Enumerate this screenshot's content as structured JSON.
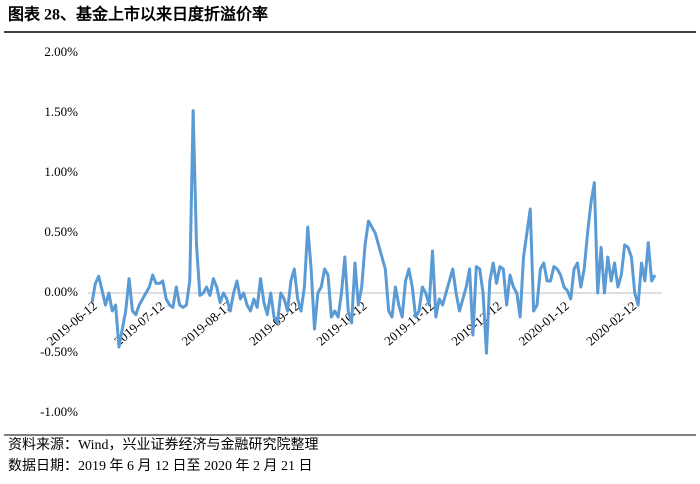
{
  "chart_data": {
    "type": "line",
    "title": "图表 28、基金上市以来日度折溢价率",
    "categories": [
      "2019-06-12",
      null,
      null,
      null,
      null,
      null,
      null,
      null,
      null,
      null,
      null,
      null,
      null,
      null,
      null,
      null,
      null,
      null,
      null,
      null,
      "2019-07-12",
      null,
      null,
      null,
      null,
      null,
      null,
      null,
      null,
      null,
      null,
      null,
      null,
      null,
      null,
      null,
      null,
      null,
      null,
      null,
      "2019-08-12",
      null,
      null,
      null,
      null,
      null,
      null,
      null,
      null,
      null,
      null,
      null,
      null,
      null,
      null,
      null,
      null,
      null,
      null,
      null,
      "2019-09-12",
      null,
      null,
      null,
      null,
      null,
      null,
      null,
      null,
      null,
      null,
      null,
      null,
      null,
      null,
      null,
      null,
      null,
      null,
      null,
      "2019-10-12",
      null,
      null,
      null,
      null,
      null,
      null,
      null,
      null,
      null,
      null,
      null,
      null,
      null,
      null,
      null,
      null,
      null,
      null,
      null,
      "2019-11-12",
      null,
      null,
      null,
      null,
      null,
      null,
      null,
      null,
      null,
      null,
      null,
      null,
      null,
      null,
      null,
      null,
      null,
      null,
      null,
      "2019-12-12",
      null,
      null,
      null,
      null,
      null,
      null,
      null,
      null,
      null,
      null,
      null,
      null,
      null,
      null,
      null,
      null,
      null,
      null,
      null,
      "2020-01-12",
      null,
      null,
      null,
      null,
      null,
      null,
      null,
      null,
      null,
      null,
      null,
      null,
      null,
      null,
      null,
      null,
      null,
      null,
      null,
      "2020-02-12",
      null,
      null,
      null,
      null,
      null,
      null,
      null
    ],
    "series": [
      {
        "color": "#5b9bd5",
        "values": [
          -0.08,
          0.08,
          0.14,
          0.02,
          -0.1,
          0.0,
          -0.15,
          -0.1,
          -0.45,
          -0.3,
          -0.15,
          0.12,
          -0.15,
          -0.18,
          -0.1,
          -0.05,
          0.0,
          0.05,
          0.15,
          0.08,
          0.08,
          0.1,
          -0.05,
          -0.1,
          -0.12,
          0.05,
          -0.1,
          -0.12,
          -0.1,
          0.1,
          1.52,
          0.4,
          -0.02,
          0.0,
          0.05,
          -0.02,
          0.12,
          0.05,
          -0.08,
          0.0,
          -0.05,
          -0.15,
          0.0,
          0.1,
          -0.05,
          0.0,
          -0.1,
          -0.15,
          -0.05,
          -0.12,
          0.12,
          -0.08,
          -0.18,
          0.0,
          -0.2,
          -0.25,
          0.0,
          -0.05,
          -0.15,
          0.1,
          0.2,
          -0.05,
          -0.15,
          0.05,
          0.55,
          0.2,
          -0.3,
          0.0,
          0.05,
          0.2,
          0.15,
          -0.2,
          -0.15,
          -0.2,
          0.0,
          0.3,
          -0.15,
          -0.25,
          0.25,
          -0.1,
          0.05,
          0.4,
          0.6,
          0.55,
          0.5,
          0.4,
          0.3,
          0.2,
          -0.15,
          -0.2,
          0.05,
          -0.1,
          -0.2,
          0.1,
          0.2,
          0.05,
          -0.2,
          -0.15,
          0.05,
          0.0,
          -0.1,
          0.35,
          -0.2,
          -0.05,
          -0.1,
          0.0,
          0.1,
          0.2,
          0.0,
          -0.15,
          -0.05,
          0.05,
          0.2,
          -0.35,
          0.22,
          0.2,
          0.0,
          -0.5,
          0.1,
          0.25,
          0.08,
          0.22,
          0.2,
          -0.1,
          0.15,
          0.05,
          0.0,
          -0.2,
          0.3,
          0.5,
          0.7,
          -0.15,
          -0.1,
          0.2,
          0.25,
          0.1,
          0.1,
          0.22,
          0.2,
          0.15,
          0.05,
          0.02,
          -0.05,
          0.2,
          0.25,
          0.05,
          0.2,
          0.5,
          0.75,
          0.92,
          0.0,
          0.38,
          0.0,
          0.3,
          0.1,
          0.25,
          0.05,
          0.15,
          0.4,
          0.38,
          0.3,
          0.0,
          -0.1,
          0.25,
          0.1,
          0.42,
          0.1,
          0.15
        ]
      }
    ],
    "ylim": [
      -1,
      2
    ],
    "yticks": [
      {
        "value": -1,
        "label": "-1.00%"
      },
      {
        "value": -0.5,
        "label": "-0.50%"
      },
      {
        "value": 0,
        "label": "0.00%"
      },
      {
        "value": 0.5,
        "label": "0.50%"
      },
      {
        "value": 1,
        "label": "1.00%"
      },
      {
        "value": 1.5,
        "label": "1.50%"
      },
      {
        "value": 2,
        "label": "2.00%"
      }
    ],
    "source": "资料来源：Wind，兴业证券经济与金融研究院整理",
    "note": "数据日期：2019 年 6 月 12 日至 2020 年 2 月 21 日"
  }
}
